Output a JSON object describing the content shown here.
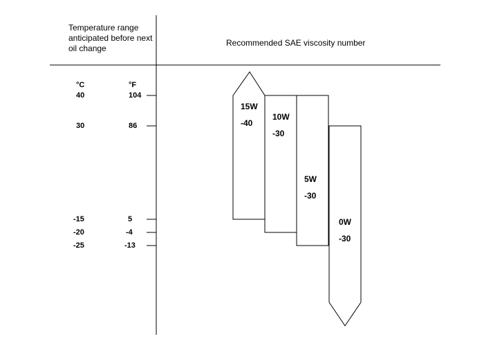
{
  "header": {
    "left_title": "Temperature range anticipated before next oil change",
    "right_title": "Recommended SAE viscosity number"
  },
  "units": {
    "celsius": "°C",
    "fahrenheit": "°F"
  },
  "scale": [
    {
      "c": "40",
      "f": "104"
    },
    {
      "c": "30",
      "f": "86"
    },
    {
      "c": "-15",
      "f": "5"
    },
    {
      "c": "-20",
      "f": "-4"
    },
    {
      "c": "-25",
      "f": "-13"
    }
  ],
  "grades": [
    {
      "name": "15W",
      "suffix": "-40"
    },
    {
      "name": "10W",
      "suffix": "-30"
    },
    {
      "name": "5W",
      "suffix": "-30"
    },
    {
      "name": "0W",
      "suffix": "-30"
    }
  ],
  "colors": {
    "line": "#000000",
    "background": "#ffffff"
  }
}
